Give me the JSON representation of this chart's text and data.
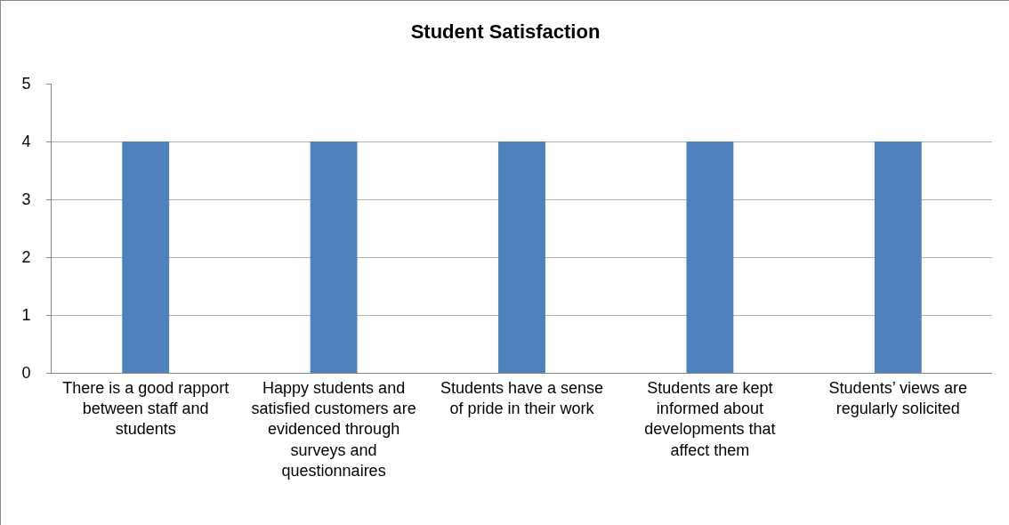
{
  "chart_data": {
    "type": "bar",
    "title": "Student Satisfaction",
    "categories": [
      "There is a good rapport between staff and students",
      "Happy students and satisfied customers are evidenced through surveys and questionnaires",
      "Students have a sense of pride in their work",
      "Students are kept informed about developments that affect them",
      "Students’ views are regularly solicited"
    ],
    "values": [
      4,
      4,
      4,
      4,
      4
    ],
    "color": "#4f81bd",
    "ylim": [
      0,
      5
    ],
    "yticks": [
      0,
      1,
      2,
      3,
      4,
      5
    ],
    "grid": "y"
  }
}
